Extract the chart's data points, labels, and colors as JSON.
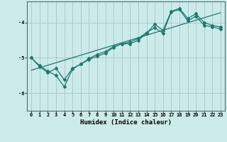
{
  "xlabel": "Humidex (Indice chaleur)",
  "bg_color": "#cceaea",
  "line_color": "#1a7a6e",
  "grid_color": "#aacccc",
  "xlim": [
    -0.5,
    23.5
  ],
  "ylim": [
    -6.5,
    -3.4
  ],
  "yticks": [
    -6,
    -5,
    -4
  ],
  "xtick_labels": [
    "0",
    "1",
    "2",
    "3",
    "4",
    "5",
    "6",
    "7",
    "8",
    "9",
    "10",
    "11",
    "12",
    "13",
    "14",
    "15",
    "16",
    "17",
    "18",
    "19",
    "20",
    "21",
    "22",
    "23"
  ],
  "line1_x": [
    0,
    1,
    2,
    3,
    4,
    5,
    6,
    7,
    8,
    9,
    10,
    11,
    12,
    13,
    14,
    15,
    16,
    17,
    18,
    19,
    20,
    21,
    22,
    23
  ],
  "line1_y": [
    -5.0,
    -5.25,
    -5.42,
    -5.3,
    -5.62,
    -5.3,
    -5.18,
    -5.05,
    -4.95,
    -4.87,
    -4.7,
    -4.6,
    -4.6,
    -4.5,
    -4.3,
    -4.05,
    -4.22,
    -3.68,
    -3.6,
    -3.88,
    -3.75,
    -4.0,
    -4.08,
    -4.12
  ],
  "line2_x": [
    0,
    1,
    2,
    3,
    4,
    5,
    6,
    7,
    8,
    9,
    10,
    11,
    12,
    13,
    14,
    15,
    16,
    17,
    18,
    19,
    20,
    21,
    22,
    23
  ],
  "line2_y": [
    -5.0,
    -5.22,
    -5.38,
    -5.5,
    -5.82,
    -5.32,
    -5.18,
    -5.02,
    -4.9,
    -4.82,
    -4.68,
    -4.6,
    -4.55,
    -4.45,
    -4.28,
    -4.15,
    -4.3,
    -3.7,
    -3.63,
    -3.95,
    -3.82,
    -4.08,
    -4.12,
    -4.18
  ],
  "line3_x": [
    0,
    23
  ],
  "line3_y": [
    -5.35,
    -3.72
  ],
  "tick_fontsize": 5.0,
  "xlabel_fontsize": 6.5,
  "marker": "D",
  "markersize": 2.0
}
